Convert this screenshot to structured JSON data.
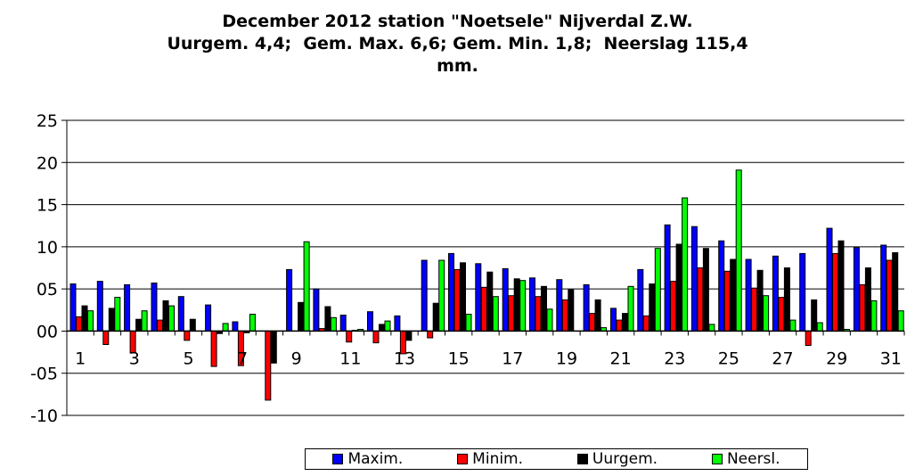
{
  "title": {
    "line1": "December 2012 station \"Noetsele\" Nijverdal Z.W.",
    "line2": "Uurgem. 4,4;  Gem. Max. 6,6; Gem. Min. 1,8;  Neerslag 115,4",
    "line3": "mm."
  },
  "chart_data": {
    "type": "bar",
    "title": "December 2012 station \"Noetsele\" Nijverdal Z.W. Uurgem. 4,4;  Gem. Max. 6,6; Gem. Min. 1,8;  Neerslag 115,4 mm.",
    "categories": [
      1,
      2,
      3,
      4,
      5,
      6,
      7,
      8,
      9,
      10,
      11,
      12,
      13,
      14,
      15,
      16,
      17,
      18,
      19,
      20,
      21,
      22,
      23,
      24,
      25,
      26,
      27,
      28,
      29,
      30,
      31
    ],
    "x_tick_labels": [
      "1",
      "3",
      "5",
      "7",
      "9",
      "11",
      "13",
      "15",
      "17",
      "19",
      "21",
      "23",
      "25",
      "27",
      "29",
      "31"
    ],
    "y_tick_labels": [
      "25",
      "20",
      "15",
      "10",
      "05",
      "00",
      "-05",
      "-10"
    ],
    "ylim": [
      -10,
      25
    ],
    "grid": true,
    "legend_position": "bottom",
    "series": [
      {
        "name": "Maxim.",
        "color": "#0000ff",
        "values": [
          5.6,
          5.9,
          5.5,
          5.7,
          4.1,
          3.1,
          1.1,
          0,
          7.3,
          5.0,
          1.9,
          2.3,
          1.8,
          8.4,
          9.2,
          8.0,
          7.4,
          6.3,
          6.1,
          5.5,
          2.7,
          7.3,
          12.6,
          12.4,
          10.7,
          8.5,
          8.9,
          9.2,
          12.2,
          9.9,
          10.2
        ]
      },
      {
        "name": "Minim.",
        "color": "#ff0000",
        "values": [
          1.7,
          -1.6,
          -2.6,
          1.3,
          -1.1,
          -4.2,
          -4.1,
          -8.2,
          0,
          0.3,
          -1.3,
          -1.4,
          -2.7,
          -0.8,
          7.3,
          5.2,
          4.2,
          4.1,
          3.7,
          2.1,
          1.3,
          1.8,
          5.9,
          7.5,
          7.1,
          5.1,
          4.0,
          -1.7,
          9.2,
          5.5,
          8.4
        ]
      },
      {
        "name": "Uurgem.",
        "color": "#000000",
        "values": [
          3.0,
          2.7,
          1.4,
          3.6,
          1.4,
          -0.3,
          -0.2,
          -3.8,
          3.4,
          2.9,
          0.1,
          0.8,
          -1.1,
          3.3,
          8.1,
          7.0,
          6.2,
          5.3,
          4.9,
          3.7,
          2.1,
          5.6,
          10.3,
          9.8,
          8.5,
          7.2,
          7.5,
          3.7,
          10.7,
          7.5,
          9.3
        ]
      },
      {
        "name": "Neersl.",
        "color": "#00ff00",
        "values": [
          2.4,
          4.0,
          2.4,
          3.0,
          0,
          0.9,
          2.0,
          0,
          10.6,
          1.6,
          0.2,
          1.2,
          0,
          8.4,
          2.0,
          4.1,
          6.0,
          2.6,
          0,
          0.4,
          5.3,
          9.8,
          15.8,
          0.8,
          19.1,
          4.2,
          1.3,
          1.0,
          0.2,
          3.6,
          2.4
        ]
      }
    ]
  }
}
